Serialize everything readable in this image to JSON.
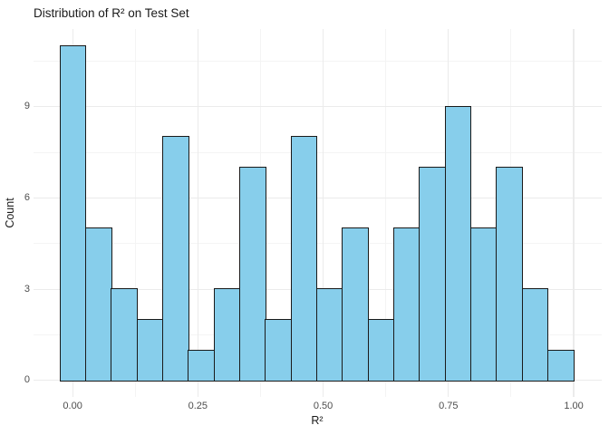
{
  "chart_data": {
    "type": "bar",
    "subtype": "histogram",
    "title": "Distribution of R² on Test Set",
    "xlabel": "R²",
    "ylabel": "Count",
    "bin_start": -0.025,
    "bin_width": 0.05125,
    "counts": [
      11,
      5,
      3,
      2,
      8,
      1,
      3,
      7,
      2,
      8,
      3,
      5,
      2,
      5,
      7,
      9,
      5,
      7,
      3,
      1
    ],
    "x_ticks": [
      0,
      0.25,
      0.5,
      0.75,
      1
    ],
    "x_tick_labels": [
      "0.00",
      "0.25",
      "0.50",
      "0.75",
      "1.00"
    ],
    "x_minor_ticks": [
      0.125,
      0.375,
      0.625,
      0.875
    ],
    "y_ticks": [
      0,
      3,
      6,
      9
    ],
    "y_tick_labels": [
      "0",
      "3",
      "6",
      "9"
    ],
    "y_minor_ticks": [
      1.5,
      4.5,
      7.5,
      10.5
    ],
    "xlim": [
      -0.078,
      1.056
    ],
    "ylim": [
      -0.54,
      11.55
    ],
    "grid": "on",
    "legend": "none",
    "colors": {
      "bar_fill": "#87CEEB",
      "bar_stroke": "#1A1A1A",
      "grid_major": "#EBEBEB",
      "grid_minor": "#F4F4F4",
      "axis_text": "#4D4D4D",
      "title_text": "#1A1A1A",
      "background": "#FFFFFF"
    }
  }
}
